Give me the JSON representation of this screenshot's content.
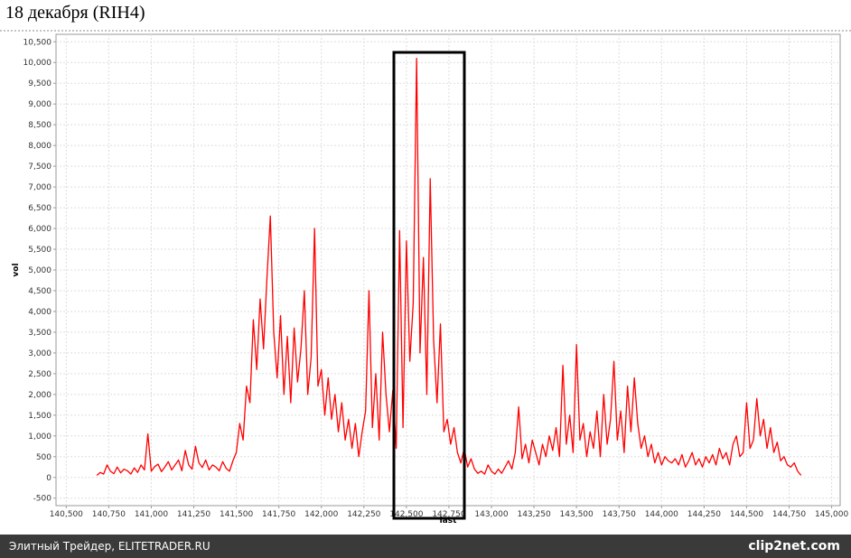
{
  "chart_data": {
    "type": "line",
    "title": "18 декабря (RIH4)",
    "x_label": "last",
    "y_label": "vol",
    "color": "#ff0000",
    "grid": true,
    "footer_left": "Элитный Трейдер, ELITETRADER.RU",
    "footer_right": "clip2net.com",
    "xlim": [
      140440,
      145050
    ],
    "ylim": [
      -680,
      10680
    ],
    "xticks": [
      {
        "value": 140500,
        "label": "140,500"
      },
      {
        "value": 140750,
        "label": "140,750"
      },
      {
        "value": 141000,
        "label": "141,000"
      },
      {
        "value": 141250,
        "label": "141,250"
      },
      {
        "value": 141500,
        "label": "141,500"
      },
      {
        "value": 141750,
        "label": "141,750"
      },
      {
        "value": 142000,
        "label": "142,000"
      },
      {
        "value": 142250,
        "label": "142,250"
      },
      {
        "value": 142500,
        "label": "142,500"
      },
      {
        "value": 142750,
        "label": "142,750"
      },
      {
        "value": 143000,
        "label": "143,000"
      },
      {
        "value": 143250,
        "label": "143,250"
      },
      {
        "value": 143500,
        "label": "143,500"
      },
      {
        "value": 143750,
        "label": "143,750"
      },
      {
        "value": 144000,
        "label": "144,000"
      },
      {
        "value": 144250,
        "label": "144,250"
      },
      {
        "value": 144500,
        "label": "144,500"
      },
      {
        "value": 144750,
        "label": "144,750"
      },
      {
        "value": 145000,
        "label": "145,000"
      }
    ],
    "yticks": [
      -500,
      0,
      500,
      {
        "value": 1000,
        "label": "1,000"
      },
      {
        "value": 1500,
        "label": "1,500"
      },
      {
        "value": 2000,
        "label": "2,000"
      },
      {
        "value": 2500,
        "label": "2,500"
      },
      {
        "value": 3000,
        "label": "3,000"
      },
      {
        "value": 3500,
        "label": "3,500"
      },
      {
        "value": 4000,
        "label": "4,000"
      },
      {
        "value": 4500,
        "label": "4,500"
      },
      {
        "value": 5000,
        "label": "5,000"
      },
      {
        "value": 5500,
        "label": "5,500"
      },
      {
        "value": 6000,
        "label": "6,000"
      },
      {
        "value": 6500,
        "label": "6,500"
      },
      {
        "value": 7000,
        "label": "7,000"
      },
      {
        "value": 7500,
        "label": "7,500"
      },
      {
        "value": 8000,
        "label": "8,000"
      },
      {
        "value": 8500,
        "label": "8,500"
      },
      {
        "value": 9000,
        "label": "9,000"
      },
      {
        "value": 9500,
        "label": "9,500"
      },
      {
        "value": 10000,
        "label": "10,000"
      },
      {
        "value": 10500,
        "label": "10,500"
      }
    ],
    "x": [
      140680,
      140700,
      140720,
      140740,
      140760,
      140780,
      140800,
      140820,
      140840,
      140860,
      140880,
      140900,
      140920,
      140940,
      140960,
      140980,
      141000,
      141020,
      141040,
      141060,
      141080,
      141100,
      141120,
      141140,
      141160,
      141180,
      141200,
      141220,
      141240,
      141260,
      141280,
      141300,
      141320,
      141340,
      141360,
      141380,
      141400,
      141420,
      141440,
      141460,
      141480,
      141500,
      141520,
      141540,
      141560,
      141580,
      141600,
      141620,
      141640,
      141660,
      141680,
      141700,
      141720,
      141740,
      141760,
      141780,
      141800,
      141820,
      141840,
      141860,
      141880,
      141900,
      141920,
      141940,
      141960,
      141980,
      142000,
      142020,
      142040,
      142060,
      142080,
      142100,
      142120,
      142140,
      142160,
      142180,
      142200,
      142220,
      142240,
      142260,
      142280,
      142300,
      142320,
      142340,
      142360,
      142380,
      142400,
      142420,
      142440,
      142460,
      142480,
      142500,
      142520,
      142540,
      142560,
      142580,
      142600,
      142620,
      142640,
      142660,
      142680,
      142700,
      142720,
      142740,
      142760,
      142780,
      142800,
      142820,
      142840,
      142860,
      142880,
      142900,
      142920,
      142940,
      142960,
      142980,
      143000,
      143020,
      143040,
      143060,
      143080,
      143100,
      143120,
      143140,
      143160,
      143180,
      143200,
      143220,
      143240,
      143260,
      143280,
      143300,
      143320,
      143340,
      143360,
      143380,
      143400,
      143420,
      143440,
      143460,
      143480,
      143500,
      143520,
      143540,
      143560,
      143580,
      143600,
      143620,
      143640,
      143660,
      143680,
      143700,
      143720,
      143740,
      143760,
      143780,
      143800,
      143820,
      143840,
      143860,
      143880,
      143900,
      143920,
      143940,
      143960,
      143980,
      144000,
      144020,
      144040,
      144060,
      144080,
      144100,
      144120,
      144140,
      144160,
      144180,
      144200,
      144220,
      144240,
      144260,
      144280,
      144300,
      144320,
      144340,
      144360,
      144380,
      144400,
      144420,
      144440,
      144460,
      144480,
      144500,
      144520,
      144540,
      144560,
      144580,
      144600,
      144620,
      144640,
      144660,
      144680,
      144700,
      144720,
      144740,
      144760,
      144780,
      144800,
      144820
    ],
    "values": [
      50,
      120,
      80,
      300,
      150,
      90,
      250,
      110,
      200,
      160,
      80,
      230,
      120,
      300,
      180,
      1050,
      150,
      260,
      320,
      140,
      250,
      380,
      180,
      300,
      420,
      160,
      650,
      300,
      200,
      750,
      350,
      240,
      420,
      180,
      300,
      250,
      160,
      380,
      220,
      150,
      400,
      600,
      1300,
      900,
      2200,
      1800,
      3800,
      2600,
      4300,
      3100,
      4800,
      6300,
      3500,
      2400,
      3900,
      2000,
      3400,
      1800,
      3600,
      2300,
      3100,
      4500,
      2000,
      2900,
      6000,
      2200,
      2600,
      1500,
      2400,
      1400,
      2000,
      1100,
      1800,
      900,
      1400,
      700,
      1300,
      500,
      1100,
      1600,
      4500,
      1200,
      2500,
      900,
      3500,
      2000,
      1100,
      2100,
      700,
      5950,
      1200,
      5700,
      2800,
      4200,
      10100,
      3000,
      5300,
      2000,
      7200,
      3300,
      1800,
      3700,
      1100,
      1400,
      800,
      1200,
      600,
      350,
      700,
      250,
      450,
      200,
      100,
      150,
      80,
      300,
      150,
      80,
      200,
      100,
      250,
      400,
      200,
      600,
      1700,
      450,
      800,
      350,
      900,
      600,
      300,
      800,
      500,
      1000,
      650,
      1200,
      500,
      2700,
      800,
      1500,
      600,
      3200,
      900,
      1300,
      500,
      1100,
      700,
      1600,
      500,
      2000,
      800,
      1400,
      2800,
      900,
      1600,
      600,
      2200,
      1100,
      2400,
      1300,
      700,
      1000,
      500,
      800,
      350,
      600,
      300,
      500,
      400,
      350,
      450,
      300,
      550,
      250,
      400,
      600,
      300,
      450,
      250,
      500,
      350,
      550,
      300,
      700,
      450,
      600,
      300,
      800,
      1000,
      500,
      600,
      1800,
      700,
      900,
      1900,
      1000,
      1400,
      700,
      1200,
      600,
      850,
      400,
      500,
      300,
      250,
      350,
      150,
      50
    ]
  }
}
